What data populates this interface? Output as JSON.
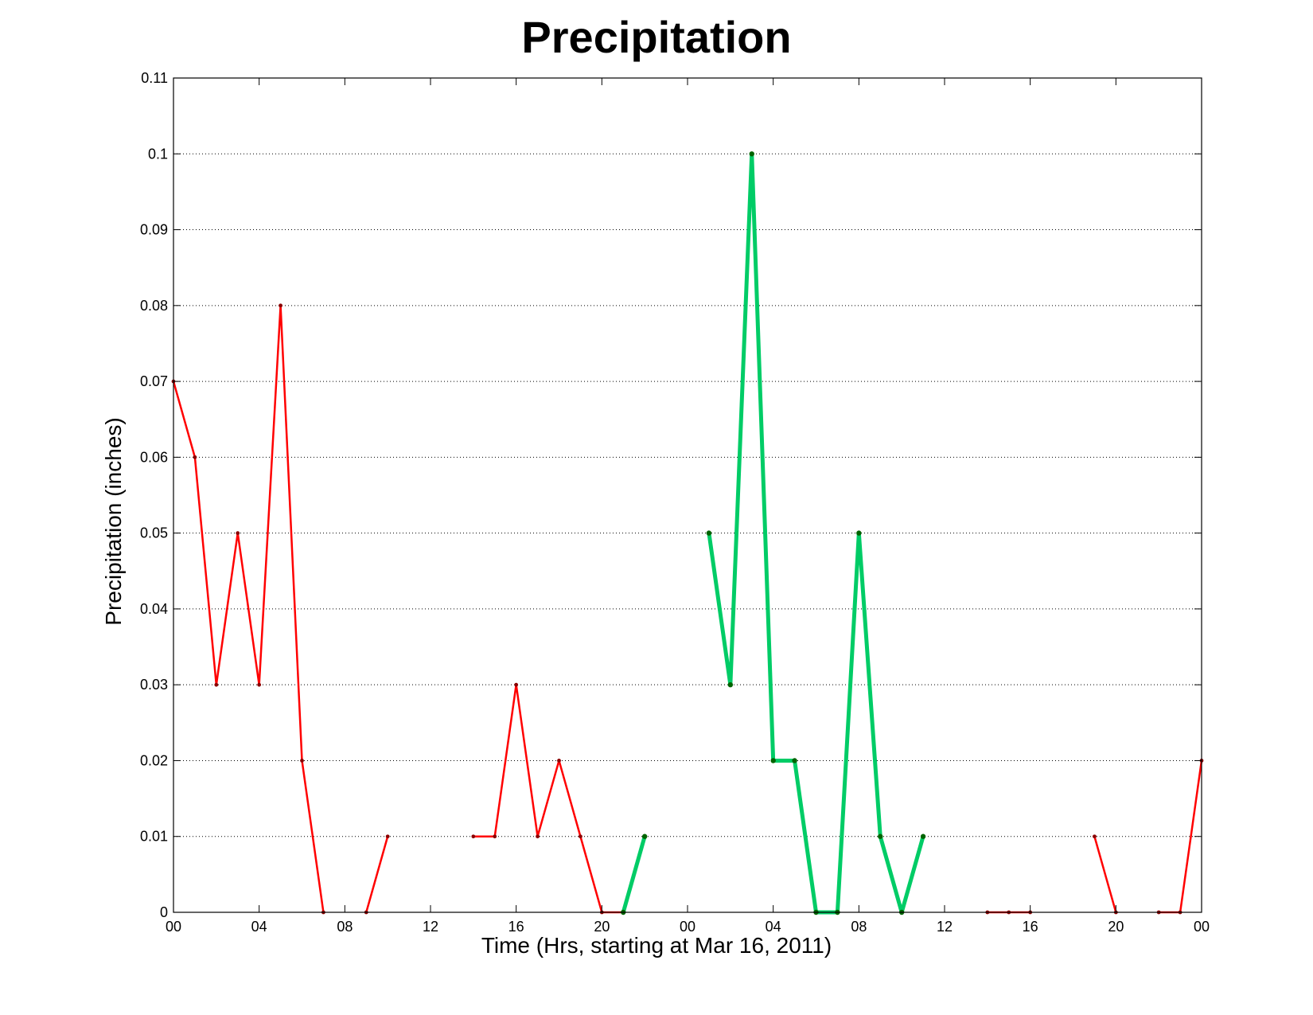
{
  "chart_data": {
    "type": "line",
    "title": "Precipitation",
    "xlabel": "Time (Hrs, starting at Mar 16, 2011)",
    "ylabel": "Precipitation (inches)",
    "ylim": [
      0,
      0.11
    ],
    "xlim": [
      0,
      48
    ],
    "grid": "y-dotted",
    "x_ticks": [
      {
        "value": 0,
        "label": "00"
      },
      {
        "value": 4,
        "label": "04"
      },
      {
        "value": 8,
        "label": "08"
      },
      {
        "value": 12,
        "label": "12"
      },
      {
        "value": 16,
        "label": "16"
      },
      {
        "value": 20,
        "label": "20"
      },
      {
        "value": 24,
        "label": "00"
      },
      {
        "value": 28,
        "label": "04"
      },
      {
        "value": 32,
        "label": "08"
      },
      {
        "value": 36,
        "label": "12"
      },
      {
        "value": 40,
        "label": "16"
      },
      {
        "value": 44,
        "label": "20"
      },
      {
        "value": 48,
        "label": "00"
      }
    ],
    "y_ticks": [
      {
        "value": 0,
        "label": "0"
      },
      {
        "value": 0.01,
        "label": "0.01"
      },
      {
        "value": 0.02,
        "label": "0.02"
      },
      {
        "value": 0.03,
        "label": "0.03"
      },
      {
        "value": 0.04,
        "label": "0.04"
      },
      {
        "value": 0.05,
        "label": "0.05"
      },
      {
        "value": 0.06,
        "label": "0.06"
      },
      {
        "value": 0.07,
        "label": "0.07"
      },
      {
        "value": 0.08,
        "label": "0.08"
      },
      {
        "value": 0.09,
        "label": "0.09"
      },
      {
        "value": 0.1,
        "label": "0.1"
      },
      {
        "value": 0.11,
        "label": "0.11"
      }
    ],
    "series": [
      {
        "color": "#ff0000",
        "marker_color": "#8b0000",
        "style": "thin",
        "points": [
          [
            0,
            0.07
          ],
          [
            1,
            0.06
          ],
          [
            2,
            0.03
          ],
          [
            3,
            0.05
          ],
          [
            4,
            0.03
          ],
          [
            5,
            0.08
          ],
          [
            6,
            0.02
          ],
          [
            7,
            0
          ]
        ]
      },
      {
        "color": "#ff0000",
        "marker_color": "#8b0000",
        "style": "thin",
        "points": [
          [
            9,
            0
          ],
          [
            10,
            0.01
          ]
        ]
      },
      {
        "color": "#ff0000",
        "marker_color": "#8b0000",
        "style": "thin",
        "points": [
          [
            14,
            0.01
          ],
          [
            15,
            0.01
          ],
          [
            16,
            0.03
          ],
          [
            17,
            0.01
          ],
          [
            18,
            0.02
          ],
          [
            19,
            0.01
          ],
          [
            20,
            0
          ],
          [
            21,
            0
          ]
        ]
      },
      {
        "color": "#00cc66",
        "marker_color": "#006400",
        "style": "thick",
        "points": [
          [
            21,
            0
          ],
          [
            22,
            0.01
          ]
        ]
      },
      {
        "color": "#00cc66",
        "marker_color": "#006400",
        "style": "thick",
        "points": [
          [
            25,
            0.05
          ],
          [
            26,
            0.03
          ],
          [
            27,
            0.1
          ],
          [
            28,
            0.02
          ],
          [
            29,
            0.02
          ],
          [
            30,
            0
          ],
          [
            31,
            0
          ],
          [
            32,
            0.05
          ],
          [
            33,
            0.01
          ],
          [
            34,
            0
          ],
          [
            35,
            0.01
          ]
        ]
      },
      {
        "color": "#ff0000",
        "marker_color": "#8b0000",
        "style": "thin",
        "points": [
          [
            38,
            0
          ],
          [
            39,
            0
          ],
          [
            40,
            0
          ]
        ]
      },
      {
        "color": "#ff0000",
        "marker_color": "#8b0000",
        "style": "thin",
        "points": [
          [
            43,
            0.01
          ],
          [
            44,
            0
          ]
        ]
      },
      {
        "color": "#ff0000",
        "marker_color": "#8b0000",
        "style": "thin",
        "points": [
          [
            46,
            0
          ],
          [
            47,
            0
          ],
          [
            48,
            0.02
          ]
        ]
      }
    ]
  }
}
